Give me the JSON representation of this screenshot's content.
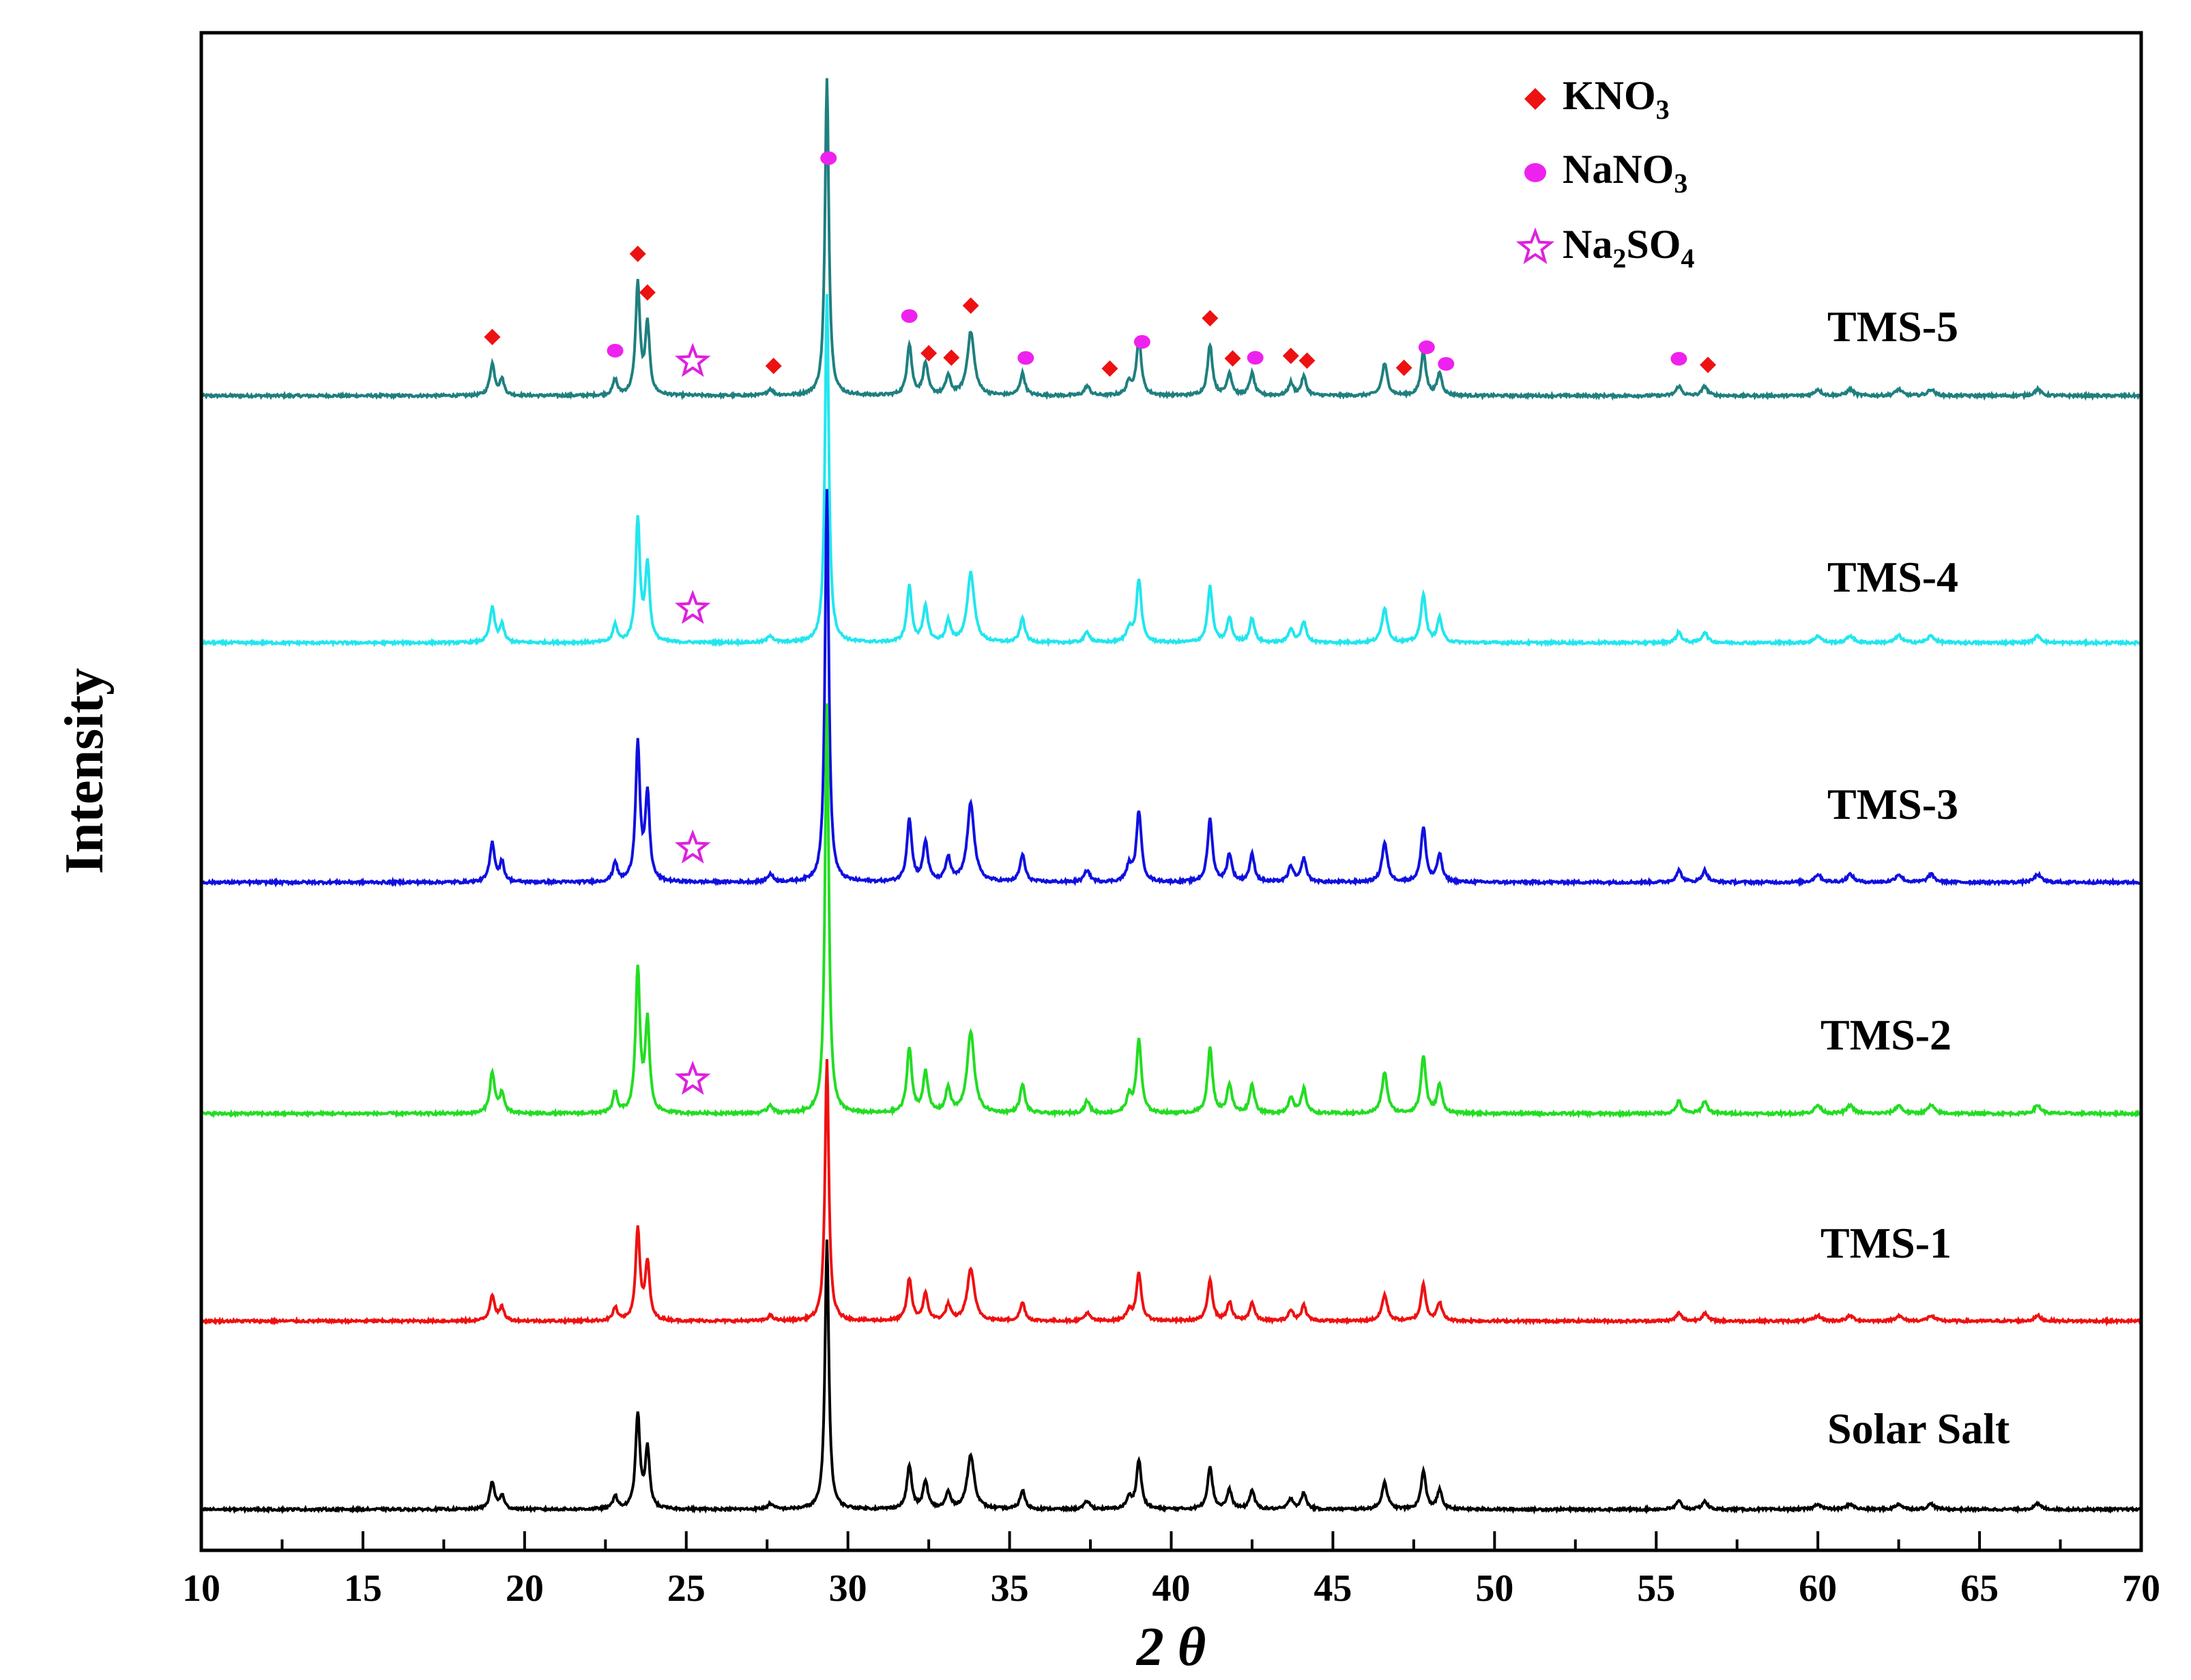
{
  "chart_data": {
    "type": "line",
    "xlabel": "2 θ",
    "ylabel": "Intensity",
    "xlim": [
      10,
      70
    ],
    "xticks": [
      10,
      15,
      20,
      25,
      30,
      35,
      40,
      45,
      50,
      55,
      60,
      65,
      70
    ],
    "xtick_labels": [
      "10",
      "15",
      "20",
      "25",
      "30",
      "35",
      "40",
      "45",
      "50",
      "55",
      "60",
      "65",
      "70"
    ],
    "y_ticks_shown": false,
    "series": [
      {
        "name": "TMS-5",
        "color": "#1f7f7f",
        "amplitude": 1.0
      },
      {
        "name": "TMS-4",
        "color": "#22e6ee",
        "amplitude": 1.15
      },
      {
        "name": "TMS-3",
        "color": "#1010e0",
        "amplitude": 1.2
      },
      {
        "name": "TMS-2",
        "color": "#22dd22",
        "amplitude": 1.25
      },
      {
        "name": "TMS-1",
        "color": "#ee1111",
        "amplitude": 0.85
      },
      {
        "name": "Solar Salt",
        "color": "#000000",
        "amplitude": 0.9
      }
    ],
    "peaks": [
      {
        "pos": 19.0,
        "height": 0.1,
        "width": 0.09
      },
      {
        "pos": 19.3,
        "height": 0.05,
        "width": 0.08
      },
      {
        "pos": 22.8,
        "height": 0.05,
        "width": 0.08
      },
      {
        "pos": 23.5,
        "height": 0.35,
        "width": 0.08
      },
      {
        "pos": 23.8,
        "height": 0.22,
        "width": 0.08
      },
      {
        "pos": 27.6,
        "height": 0.02,
        "width": 0.1
      },
      {
        "pos": 29.35,
        "height": 1.0,
        "width": 0.07
      },
      {
        "pos": 31.9,
        "height": 0.16,
        "width": 0.09
      },
      {
        "pos": 32.4,
        "height": 0.1,
        "width": 0.09
      },
      {
        "pos": 33.1,
        "height": 0.06,
        "width": 0.09
      },
      {
        "pos": 33.8,
        "height": 0.2,
        "width": 0.13
      },
      {
        "pos": 35.4,
        "height": 0.07,
        "width": 0.09
      },
      {
        "pos": 37.4,
        "height": 0.03,
        "width": 0.1
      },
      {
        "pos": 38.7,
        "height": 0.04,
        "width": 0.1
      },
      {
        "pos": 39.0,
        "height": 0.18,
        "width": 0.09
      },
      {
        "pos": 41.2,
        "height": 0.16,
        "width": 0.09
      },
      {
        "pos": 41.8,
        "height": 0.07,
        "width": 0.09
      },
      {
        "pos": 42.5,
        "height": 0.07,
        "width": 0.09
      },
      {
        "pos": 43.7,
        "height": 0.04,
        "width": 0.09
      },
      {
        "pos": 44.1,
        "height": 0.06,
        "width": 0.09
      },
      {
        "pos": 46.6,
        "height": 0.1,
        "width": 0.1
      },
      {
        "pos": 47.8,
        "height": 0.14,
        "width": 0.09
      },
      {
        "pos": 48.3,
        "height": 0.07,
        "width": 0.09
      },
      {
        "pos": 55.7,
        "height": 0.03,
        "width": 0.1
      },
      {
        "pos": 56.5,
        "height": 0.03,
        "width": 0.1
      },
      {
        "pos": 60.0,
        "height": 0.02,
        "width": 0.12
      },
      {
        "pos": 61.0,
        "height": 0.02,
        "width": 0.12
      },
      {
        "pos": 62.5,
        "height": 0.02,
        "width": 0.12
      },
      {
        "pos": 63.5,
        "height": 0.02,
        "width": 0.12
      },
      {
        "pos": 66.8,
        "height": 0.02,
        "width": 0.12
      }
    ],
    "legend": [
      {
        "label": "KNO3",
        "base": "KNO",
        "sub": "3",
        "marker": "diamond",
        "color": "#ee1111"
      },
      {
        "label": "NaNO3",
        "base": "NaNO",
        "sub": "3",
        "marker": "circle",
        "color": "#ee22ee"
      },
      {
        "label": "Na2SO4",
        "parts": [
          "Na",
          "2",
          "SO",
          "4"
        ],
        "marker": "star",
        "color": "#dd22dd"
      }
    ],
    "annotations": {
      "KNO3": [
        19.0,
        23.5,
        23.8,
        27.7,
        32.5,
        33.2,
        33.8,
        38.1,
        41.2,
        41.9,
        43.7,
        44.2,
        47.2,
        56.6
      ],
      "NaNO3": [
        22.8,
        29.4,
        31.9,
        35.5,
        39.1,
        42.6,
        47.9,
        48.5,
        55.7
      ],
      "Na2SO4": [
        25.2
      ]
    },
    "na2so4_marks_on": [
      "TMS-5",
      "TMS-4",
      "TMS-3",
      "TMS-2"
    ]
  }
}
